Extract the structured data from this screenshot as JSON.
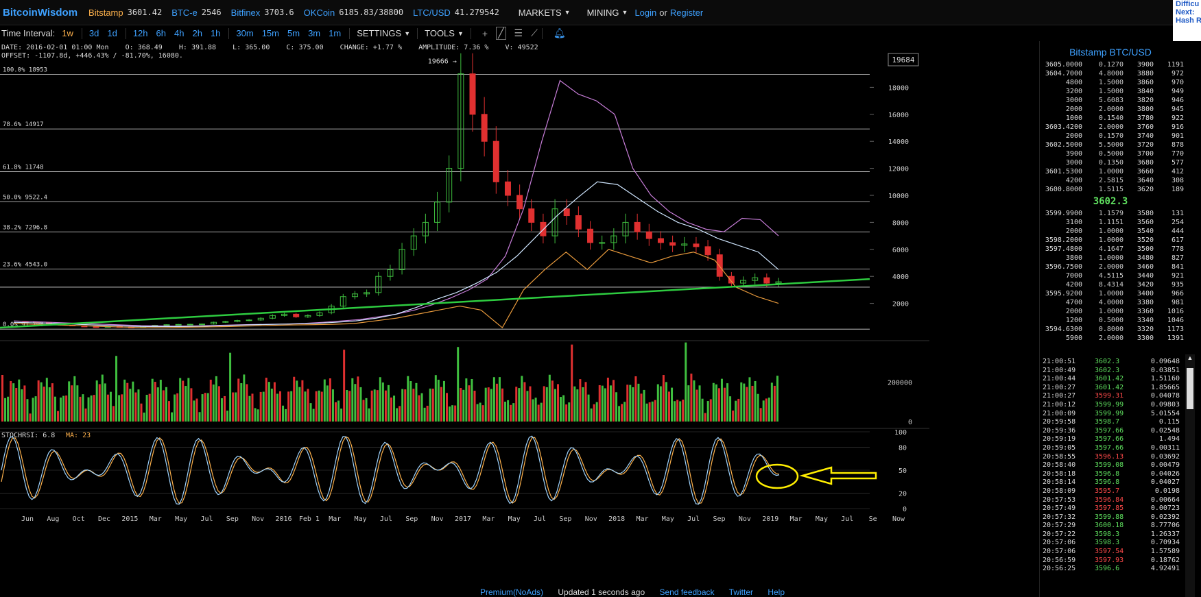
{
  "topbar": {
    "brand": "BitcoinWisdom",
    "tickers": [
      {
        "exchange": "Bitstamp",
        "price": "3601.42",
        "active": true
      },
      {
        "exchange": "BTC-e",
        "price": "2546",
        "active": false
      },
      {
        "exchange": "Bitfinex",
        "price": "3703.6",
        "active": false
      },
      {
        "exchange": "OKCoin",
        "price": "6185.83/38800",
        "active": false
      },
      {
        "exchange": "LTC/USD",
        "price": "41.279542",
        "active": false
      }
    ],
    "markets": "MARKETS",
    "mining": "MINING",
    "login": "Login",
    "or": "or",
    "register": "Register"
  },
  "side_box": {
    "line1": "Difficu",
    "line2": "Next:",
    "line3": "Hash R"
  },
  "toolbar": {
    "interval_label": "Time Interval:",
    "intervals": [
      "1w",
      "3d",
      "1d",
      "12h",
      "6h",
      "4h",
      "2h",
      "1h",
      "30m",
      "15m",
      "5m",
      "3m",
      "1m"
    ],
    "selected_interval": "1w",
    "settings": "SETTINGS",
    "tools": "TOOLS"
  },
  "info": {
    "line1": "DATE: 2016-02-01 01:00 Mon    O: 368.49    H: 391.88    L: 365.00    C: 375.00    CHANGE: +1.77 %    AMPLITUDE: 7.36 %    V: 49522",
    "line2": "OFFSET: -1107.8d, +446.43% / -81.70%, 16080."
  },
  "chart_data": {
    "type": "line",
    "title": "Bitstamp BTC/USD 1w",
    "x": [
      "Jun",
      "Aug",
      "Oct",
      "Dec",
      "2015",
      "Mar",
      "May",
      "Jul",
      "Sep",
      "Nov",
      "2016",
      "Feb 1",
      "Mar",
      "May",
      "Jul",
      "Sep",
      "Nov",
      "2017",
      "Mar",
      "May",
      "Jul",
      "Sep",
      "Nov",
      "2018",
      "Mar",
      "May",
      "Jul",
      "Sep",
      "Nov",
      "2019",
      "Mar",
      "May",
      "Jul",
      "Se",
      "Now"
    ],
    "ylim": [
      0,
      20000
    ],
    "y_ticks": [
      2000,
      4000,
      6000,
      8000,
      10000,
      12000,
      14000,
      16000,
      18000
    ],
    "price_series": {
      "name": "close",
      "values": [
        620,
        600,
        560,
        480,
        380,
        330,
        260,
        240,
        280,
        240,
        230,
        300,
        380,
        420,
        440,
        450,
        470,
        600,
        650,
        730,
        770,
        900,
        1100,
        1200,
        1000,
        1100,
        1300,
        1800,
        2500,
        2700,
        2800,
        4000,
        4500,
        6000,
        7000,
        8000,
        9500,
        12000,
        19000,
        16000,
        14000,
        11000,
        10000,
        9000,
        8000,
        7000,
        9000,
        8500,
        7500,
        6500,
        6500,
        7000,
        8000,
        7300,
        6800,
        6500,
        6300,
        6400,
        6200,
        5600,
        4000,
        3500,
        3700,
        3900,
        3500,
        3600
      ]
    },
    "ma_upper": [
      700,
      650,
      600,
      550,
      500,
      450,
      400,
      350,
      330,
      320,
      330,
      360,
      400,
      430,
      450,
      470,
      520,
      600,
      700,
      800,
      1000,
      1200,
      1500,
      1900,
      2400,
      3000,
      3800,
      5500,
      9000,
      14000,
      18500,
      17500,
      17000,
      16000,
      12000,
      10000,
      8800,
      8000,
      7500,
      7300,
      8300,
      8200,
      7000
    ],
    "ma_mid": [
      600,
      560,
      520,
      460,
      400,
      350,
      300,
      280,
      280,
      290,
      320,
      380,
      420,
      450,
      480,
      520,
      600,
      700,
      900,
      1200,
      1700,
      2300,
      2800,
      3500,
      4300,
      5500,
      7000,
      8500,
      9800,
      11000,
      10800,
      9800,
      8800,
      8000,
      7500,
      6800,
      6300,
      5800,
      4500
    ],
    "ma_lower": [
      500,
      450,
      400,
      350,
      300,
      250,
      210,
      200,
      230,
      250,
      280,
      320,
      360,
      400,
      420,
      450,
      500,
      700,
      900,
      1200,
      1500,
      1800,
      1500,
      200,
      3000,
      4500,
      5800,
      4500,
      6000,
      5500,
      5000,
      5500,
      5800,
      5200,
      3200,
      2500,
      2000
    ],
    "trendline": {
      "from": [
        0,
        200
      ],
      "to": [
        1,
        3800
      ]
    },
    "fib_levels": [
      {
        "label": "100.0% 18953",
        "value": 18953
      },
      {
        "label": "78.6% 14917",
        "value": 14917
      },
      {
        "label": "61.8% 11748",
        "value": 11748
      },
      {
        "label": "50.0% 9522.4",
        "value": 9522.4
      },
      {
        "label": "38.2% 7296.8",
        "value": 7296.8
      },
      {
        "label": "23.6% 4543.0",
        "value": 4543.0
      },
      {
        "label": "0.0% 91.790",
        "value": 91.79
      }
    ],
    "fib_extra": 3200,
    "annotation_high": "19666",
    "price_label": "19684",
    "volume": {
      "ylim": [
        0,
        400000
      ],
      "y_ticks": [
        0,
        200000
      ]
    },
    "stochrsi": {
      "label": "STOCHRSI: 6.8",
      "ma_label": "MA: 23",
      "ylim": [
        0,
        100
      ],
      "y_ticks": [
        0,
        20,
        50,
        80,
        100
      ]
    },
    "volume_tick_labels": [
      "200000",
      "0"
    ],
    "rsi_tick_labels": [
      "100",
      "80",
      "50",
      "20",
      "0"
    ],
    "y_tick_labels": [
      "18000",
      "16000",
      "14000",
      "12000",
      "10000",
      "8000",
      "6000",
      "4000",
      "2000"
    ]
  },
  "orderbook": {
    "title": "Bitstamp BTC/USD",
    "asks": [
      [
        "3605.0000",
        "0.1270",
        "3900",
        "1191"
      ],
      [
        "3604.7000",
        "4.8000",
        "3880",
        "972"
      ],
      [
        "4800",
        "1.5000",
        "3860",
        "970"
      ],
      [
        "3200",
        "1.5000",
        "3840",
        "949"
      ],
      [
        "3000",
        "5.6083",
        "3820",
        "946"
      ],
      [
        "2000",
        "2.0000",
        "3800",
        "945"
      ],
      [
        "1000",
        "0.1540",
        "3780",
        "922"
      ],
      [
        "3603.4200",
        "2.0000",
        "3760",
        "916"
      ],
      [
        "2000",
        "0.1570",
        "3740",
        "901"
      ],
      [
        "3602.5000",
        "5.5000",
        "3720",
        "878"
      ],
      [
        "3900",
        "0.5000",
        "3700",
        "770"
      ],
      [
        "3000",
        "0.1350",
        "3680",
        "577"
      ],
      [
        "3601.5300",
        "1.0000",
        "3660",
        "412"
      ],
      [
        "4200",
        "2.5815",
        "3640",
        "308"
      ],
      [
        "3600.8000",
        "1.5115",
        "3620",
        "189"
      ]
    ],
    "last_price": "3602.3",
    "bids": [
      [
        "3599.9900",
        "1.1579",
        "3580",
        "131"
      ],
      [
        "3100",
        "1.1151",
        "3560",
        "254"
      ],
      [
        "2000",
        "1.0000",
        "3540",
        "444"
      ],
      [
        "3598.2000",
        "1.0000",
        "3520",
        "617"
      ],
      [
        "3597.4800",
        "4.1647",
        "3500",
        "778"
      ],
      [
        "3800",
        "1.0000",
        "3480",
        "827"
      ],
      [
        "3596.7500",
        "2.0000",
        "3460",
        "841"
      ],
      [
        "7000",
        "4.5115",
        "3440",
        "921"
      ],
      [
        "4200",
        "8.4314",
        "3420",
        "935"
      ],
      [
        "3595.9200",
        "1.0000",
        "3400",
        "966"
      ],
      [
        "4700",
        "4.0000",
        "3380",
        "981"
      ],
      [
        "2000",
        "1.0000",
        "3360",
        "1016"
      ],
      [
        "1200",
        "0.5000",
        "3340",
        "1046"
      ],
      [
        "3594.6300",
        "0.8000",
        "3320",
        "1173"
      ],
      [
        "5900",
        "2.0000",
        "3300",
        "1391"
      ]
    ]
  },
  "trades": [
    [
      "21:00:51",
      "3602.3",
      "0.09648",
      "up"
    ],
    [
      "21:00:49",
      "3602.3",
      "0.03851",
      "up"
    ],
    [
      "21:00:44",
      "3601.42",
      "1.51160",
      "up"
    ],
    [
      "21:00:27",
      "3601.42",
      "1.85665",
      "up"
    ],
    [
      "21:00:27",
      "3599.31",
      "0.04078",
      "dn"
    ],
    [
      "21:00:12",
      "3599.99",
      "0.09803",
      "up"
    ],
    [
      "21:00:09",
      "3599.99",
      "5.01554",
      "up"
    ],
    [
      "20:59:58",
      "3598.7",
      "0.115",
      "up"
    ],
    [
      "20:59:36",
      "3597.66",
      "0.02548",
      "up"
    ],
    [
      "20:59:19",
      "3597.66",
      "1.494",
      "up"
    ],
    [
      "20:59:05",
      "3597.66",
      "0.00311",
      "up"
    ],
    [
      "20:58:55",
      "3596.13",
      "0.03692",
      "dn"
    ],
    [
      "20:58:40",
      "3599.08",
      "0.00479",
      "up"
    ],
    [
      "20:58:18",
      "3596.8",
      "0.04026",
      "up"
    ],
    [
      "20:58:14",
      "3596.8",
      "0.04027",
      "up"
    ],
    [
      "20:58:09",
      "3595.7",
      "0.0198",
      "dn"
    ],
    [
      "20:57:53",
      "3596.84",
      "0.00664",
      "dn"
    ],
    [
      "20:57:49",
      "3597.85",
      "0.00723",
      "dn"
    ],
    [
      "20:57:32",
      "3599.88",
      "0.02392",
      "up"
    ],
    [
      "20:57:29",
      "3600.18",
      "8.77706",
      "up"
    ],
    [
      "20:57:22",
      "3598.3",
      "1.26337",
      "up"
    ],
    [
      "20:57:06",
      "3598.3",
      "0.70934",
      "up"
    ],
    [
      "20:57:06",
      "3597.54",
      "1.57589",
      "dn"
    ],
    [
      "20:56:59",
      "3597.93",
      "0.18762",
      "dn"
    ],
    [
      "20:56:25",
      "3596.6",
      "4.92491",
      "up"
    ]
  ],
  "footer": {
    "premium": "Premium(NoAds)",
    "updated": "Updated 1 seconds ago",
    "feedback": "Send feedback",
    "twitter": "Twitter",
    "help": "Help"
  },
  "colors": {
    "up": "#3fbf3f",
    "down": "#e03030",
    "trend": "#2ecc40",
    "ma_upper": "#c77dd8",
    "ma_mid": "#cfe6ff",
    "ma_lower": "#e89a3c",
    "stoch_k": "#9fd4ff",
    "stoch_d": "#ffb24c",
    "highlight": "#ffee00"
  }
}
